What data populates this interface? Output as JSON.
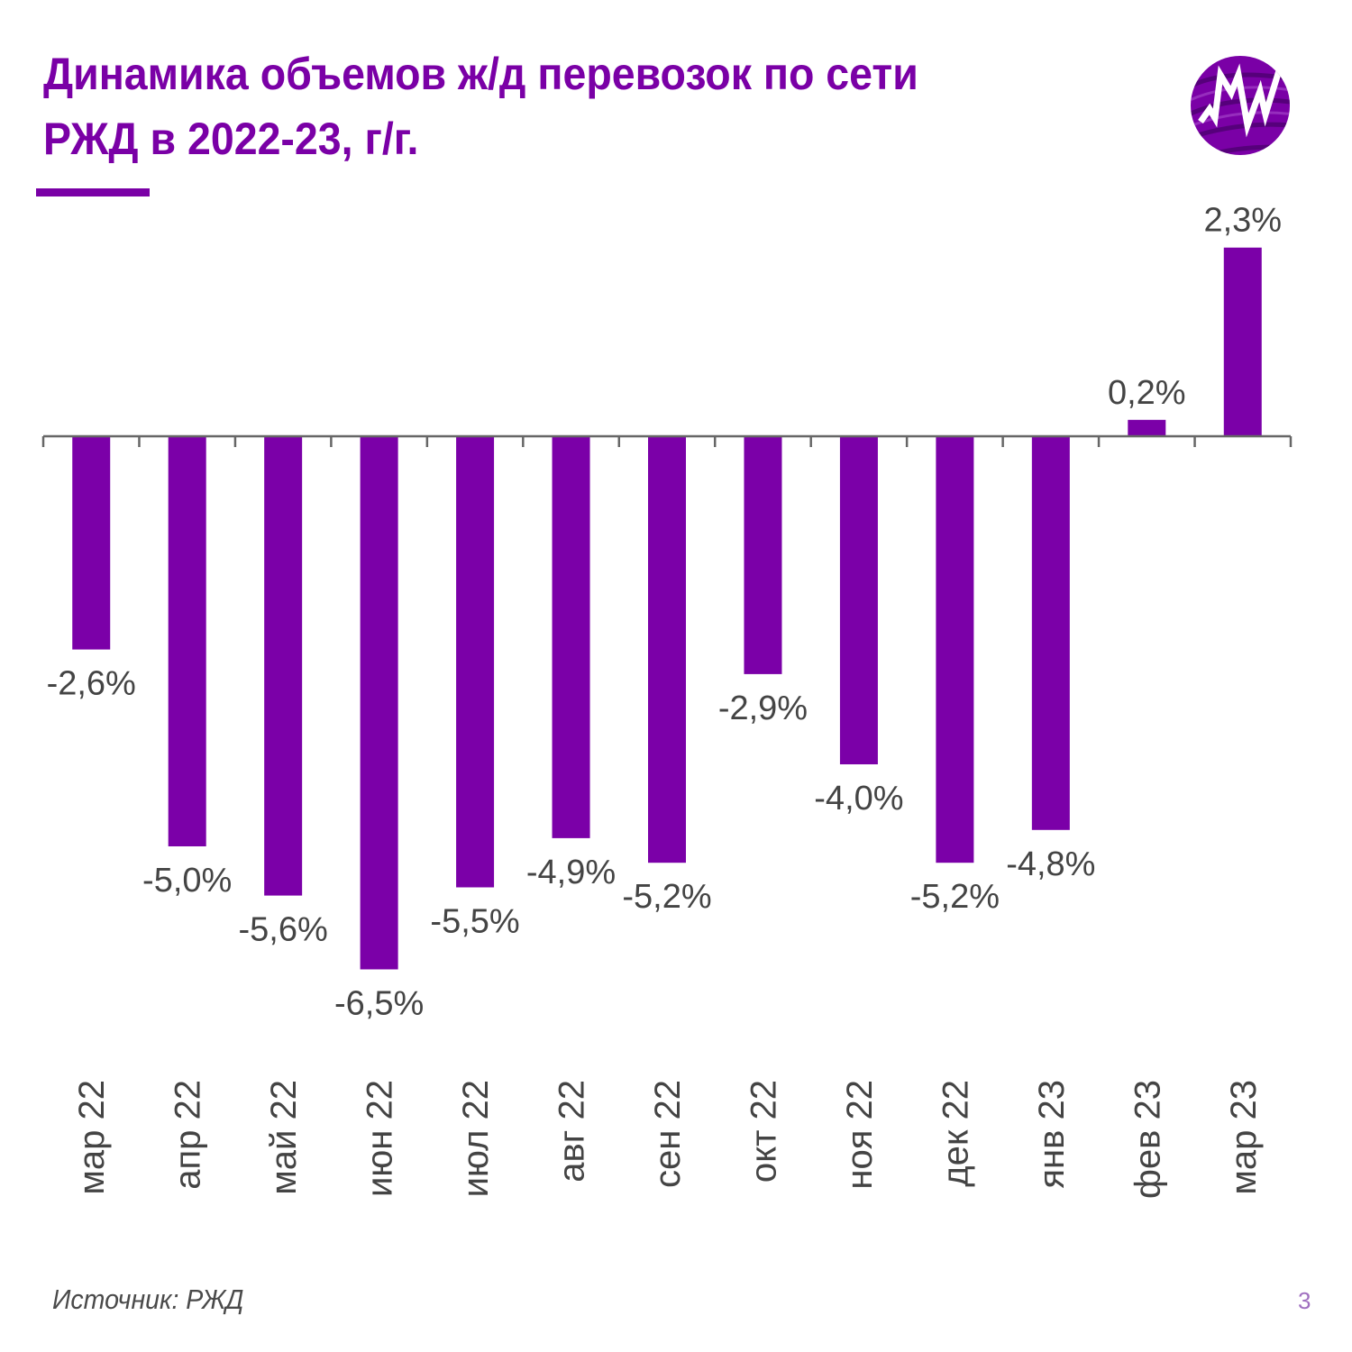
{
  "title_line1": "Динамика объемов ж/д перевозок по сети",
  "title_line2": "РЖД в 2022-23, г/г.",
  "logo": {
    "icon": "mw-logo-icon",
    "text": "MW"
  },
  "footer": {
    "source": "Источник: РЖД",
    "page_number": "3"
  },
  "colors": {
    "accent": "#7a00a6",
    "bar": "#7b00a8",
    "text": "#444444",
    "axis": "#666666",
    "page_number": "#a070c0"
  },
  "chart_data": {
    "type": "bar",
    "title": "Динамика объемов ж/д перевозок по сети РЖД в 2022-23, г/г.",
    "xlabel": "",
    "ylabel": "",
    "categories": [
      "мар 22",
      "апр 22",
      "май 22",
      "июн 22",
      "июл 22",
      "авг 22",
      "сен 22",
      "окт 22",
      "ноя 22",
      "дек 22",
      "янв 23",
      "фев 23",
      "мар 23"
    ],
    "values": [
      -2.6,
      -5.0,
      -5.6,
      -6.5,
      -5.5,
      -4.9,
      -5.2,
      -2.9,
      -4.0,
      -5.2,
      -4.8,
      0.2,
      2.3
    ],
    "labels": [
      "-2,6%",
      "-5,0%",
      "-5,6%",
      "-6,5%",
      "-5,5%",
      "-4,9%",
      "-5,2%",
      "-2,9%",
      "-4,0%",
      "-5,2%",
      "-4,8%",
      "0,2%",
      "2,3%"
    ],
    "unit": "%",
    "ylim": [
      -7,
      2.5
    ],
    "grid": false,
    "legend": "none"
  }
}
